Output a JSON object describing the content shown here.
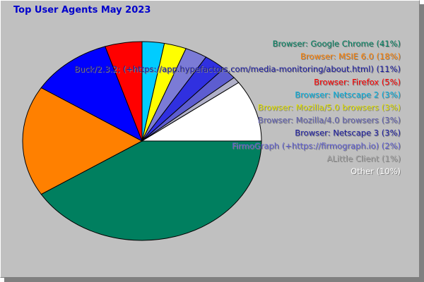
{
  "chart_data": {
    "type": "pie",
    "title": "Top User Agents May 2023",
    "slices": [
      {
        "label": "Browser: Google Chrome (41%)",
        "value": 41,
        "color": "#007f5f"
      },
      {
        "label": "Browser: MSIE 6.0 (18%)",
        "value": 18,
        "color": "#ff8000"
      },
      {
        "label": "Buck/2.3.2; (+https://app.hypefactors.com/media-monitoring/about.html) (11%)",
        "value": 11,
        "color": "#0000ff"
      },
      {
        "label": "Browser: Firefox (5%)",
        "value": 5,
        "color": "#ff0000"
      },
      {
        "label": "Browser: Netscape 2 (3%)",
        "value": 3,
        "color": "#00ccff"
      },
      {
        "label": "Browser: Mozilla/5.0 browsers (3%)",
        "value": 3,
        "color": "#ffff00"
      },
      {
        "label": "Browser: Mozilla/4.0 browsers (3%)",
        "value": 3,
        "color": "#7b7bd6"
      },
      {
        "label": "Browser: Netscape 3 (3%)",
        "value": 3,
        "color": "#3030e0"
      },
      {
        "label": "FirmoGraph (+https://firmograph.io) (2%)",
        "value": 2,
        "color": "#5d5dd0"
      },
      {
        "label": "ALittle Client (1%)",
        "value": 1,
        "color": "#b0b0c8"
      },
      {
        "label": "Other (10%)",
        "value": 10,
        "color": "#ffffff"
      }
    ],
    "legend_position": "right"
  },
  "colors": {
    "title": "#0000cc",
    "background": "#c0c0c0",
    "legend_text": [
      "#007f5f",
      "#ff8000",
      "#1a1aa0",
      "#ff0000",
      "#00b0e0",
      "#e0e000",
      "#6060b0",
      "#1a1aa0",
      "#5d5dd0",
      "#a0a0a0",
      "#ffffff"
    ]
  }
}
